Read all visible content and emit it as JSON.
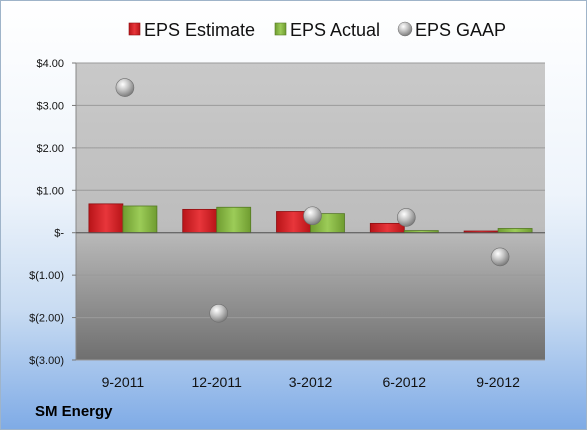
{
  "company_label": "SM Energy",
  "colors": {
    "estimate": "#e0252b",
    "actual": "#8fbf4a",
    "gaap": "#b8b8b8"
  },
  "chart_data": {
    "type": "bar",
    "categories": [
      "9-2011",
      "12-2011",
      "3-2012",
      "6-2012",
      "9-2012"
    ],
    "series": [
      {
        "name": "EPS Estimate",
        "kind": "bar",
        "values": [
          0.68,
          0.55,
          0.5,
          0.22,
          0.04
        ]
      },
      {
        "name": "EPS Actual",
        "kind": "bar",
        "values": [
          0.63,
          0.6,
          0.45,
          0.05,
          0.1
        ]
      },
      {
        "name": "EPS GAAP",
        "kind": "scatter",
        "values": [
          3.42,
          -1.9,
          0.4,
          0.36,
          -0.57
        ]
      }
    ],
    "ylim": [
      -3,
      4
    ],
    "y_ticks": [
      {
        "value": 4,
        "label": "$4.00"
      },
      {
        "value": 3,
        "label": "$3.00"
      },
      {
        "value": 2,
        "label": "$2.00"
      },
      {
        "value": 1,
        "label": "$1.00"
      },
      {
        "value": 0,
        "label": "$-"
      },
      {
        "value": -1,
        "label": "$(1.00)"
      },
      {
        "value": -2,
        "label": "$(2.00)"
      },
      {
        "value": -3,
        "label": "$(3.00)"
      }
    ],
    "legend_position": "top",
    "grid": true
  }
}
